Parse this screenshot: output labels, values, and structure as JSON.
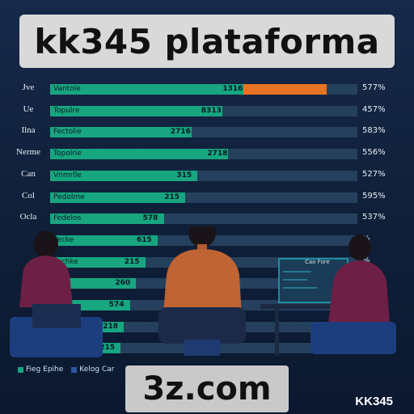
{
  "header": {
    "title": "kk345 plataforma"
  },
  "chart_data": {
    "type": "bar",
    "orientation": "horizontal",
    "rows": [
      {
        "label": "Jve",
        "bar_text": "Vantole",
        "value_text": "1316",
        "fraction": 0.63,
        "accent_fraction": 0.27,
        "pct": "577%"
      },
      {
        "label": "Ue",
        "bar_text": "Topulre",
        "value_text": "8313",
        "fraction": 0.56,
        "pct": "457%"
      },
      {
        "label": "Ilna",
        "bar_text": "Fectolie",
        "value_text": "2716",
        "fraction": 0.46,
        "pct": "583%"
      },
      {
        "label": "Nerme",
        "bar_text": "Topolrie",
        "value_text": "2718",
        "fraction": 0.58,
        "pct": "556%"
      },
      {
        "label": "Can",
        "bar_text": "Vnmrlle",
        "value_text": "315",
        "fraction": 0.48,
        "pct": "527%"
      },
      {
        "label": "Col",
        "bar_text": "Pedolme",
        "value_text": "215",
        "fraction": 0.44,
        "pct": "595%"
      },
      {
        "label": "Ocla",
        "bar_text": "Fedelos",
        "value_text": "578",
        "fraction": 0.37,
        "pct": "537%"
      },
      {
        "label": "",
        "bar_text": "Yecke",
        "value_text": "615",
        "fraction": 0.35,
        "pct": "%"
      },
      {
        "label": "",
        "bar_text": "Yechke",
        "value_text": "215",
        "fraction": 0.31,
        "pct": "%"
      },
      {
        "label": "",
        "bar_text": "Ftlle",
        "value_text": "260",
        "fraction": 0.28,
        "pct": ""
      },
      {
        "label": "",
        "bar_text": "",
        "value_text": "574",
        "fraction": 0.26,
        "pct": ""
      },
      {
        "label": "",
        "bar_text": "",
        "value_text": "218",
        "fraction": 0.24,
        "pct": ""
      },
      {
        "label": "",
        "bar_text": "",
        "value_text": "215",
        "fraction": 0.23,
        "pct": ""
      }
    ],
    "legend": [
      {
        "name": "Fieg Epihe",
        "color": "#17a67f"
      },
      {
        "name": "Kelog Car",
        "color": "#2e56a0"
      }
    ]
  },
  "footer": {
    "domain": "3z.com",
    "brand": "KK345"
  },
  "colors": {
    "bar": "#17a67f",
    "accent": "#e77422",
    "track": "#25405d",
    "background": "#0f2038"
  },
  "illustration": {
    "monitor_text": "Cao Fore"
  }
}
